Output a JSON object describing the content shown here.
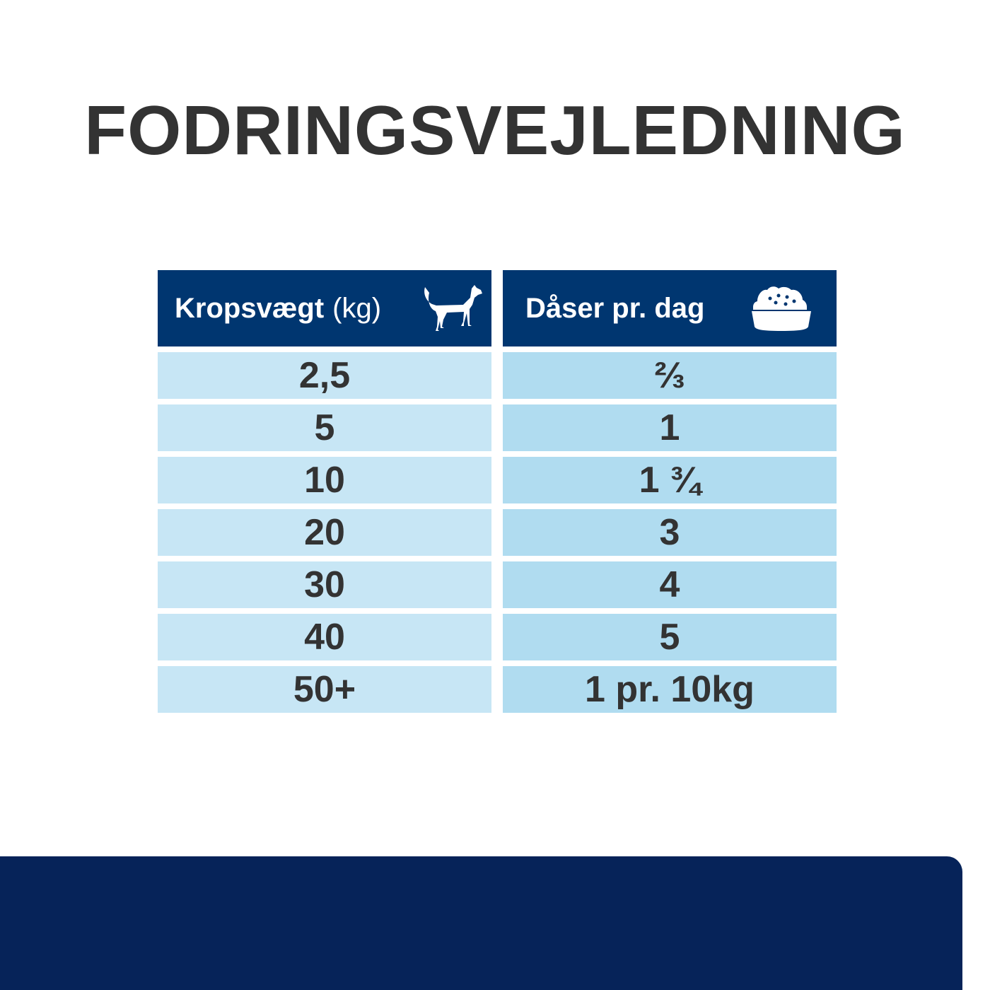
{
  "title": "FODRINGSVEJLEDNING",
  "colors": {
    "header": "#003670",
    "left_cell": "#c7e6f5",
    "right_cell": "#b0dcf0",
    "text": "#333333",
    "bottom_panel": "#062359"
  },
  "table": {
    "headers": [
      {
        "label": "Kropsvægt",
        "unit": "(kg)",
        "icon": "dog-icon"
      },
      {
        "label": "Dåser pr. dag",
        "icon": "food-bowl-icon"
      }
    ],
    "rows": [
      [
        "2,5",
        "⅔"
      ],
      [
        "5",
        "1"
      ],
      [
        "10",
        "1 ¾"
      ],
      [
        "20",
        "3"
      ],
      [
        "30",
        "4"
      ],
      [
        "40",
        "5"
      ],
      [
        "50+",
        "1 pr. 10kg"
      ]
    ]
  }
}
